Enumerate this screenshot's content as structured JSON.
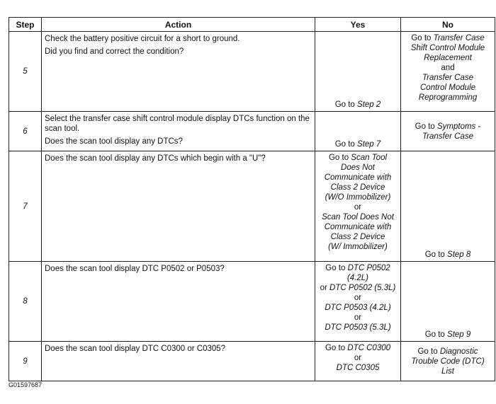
{
  "headers": {
    "step": "Step",
    "action": "Action",
    "yes": "Yes",
    "no": "No"
  },
  "rows": [
    {
      "step": "5",
      "action": [
        "Check the battery positive circuit for a short to ground.",
        "Did you find and correct the condition?"
      ],
      "yes": [
        [
          {
            "t": "Go to "
          },
          {
            "t": "Step 2",
            "i": true
          }
        ]
      ],
      "no": [
        [
          {
            "t": "Go to "
          },
          {
            "t": "Transfer Case",
            "i": true
          }
        ],
        [
          {
            "t": "Shift Control Module",
            "i": true
          }
        ],
        [
          {
            "t": "Replacement",
            "i": true
          }
        ],
        [
          {
            "t": "and"
          }
        ],
        [
          {
            "t": "Transfer Case",
            "i": true
          }
        ],
        [
          {
            "t": "Control Module",
            "i": true
          }
        ],
        [
          {
            "t": "Reprogramming",
            "i": true
          }
        ]
      ]
    },
    {
      "step": "6",
      "action": [
        "Select the transfer case shift control module display DTCs function on the scan tool.",
        "Does the scan tool display any DTCs?"
      ],
      "yes": [
        [
          {
            "t": "Go to "
          },
          {
            "t": "Step 7",
            "i": true
          }
        ]
      ],
      "no": [
        [
          {
            "t": "Go to "
          },
          {
            "t": "Symptoms -",
            "i": true
          }
        ],
        [
          {
            "t": "Transfer Case",
            "i": true
          }
        ]
      ]
    },
    {
      "step": "7",
      "action": [
        "Does the scan tool display any DTCs which begin with a \"U\"?"
      ],
      "yes": [
        [
          {
            "t": "Go to "
          },
          {
            "t": "Scan Tool",
            "i": true
          }
        ],
        [
          {
            "t": "Does Not",
            "i": true
          }
        ],
        [
          {
            "t": "Communicate with",
            "i": true
          }
        ],
        [
          {
            "t": "Class 2 Device",
            "i": true
          }
        ],
        [
          {
            "t": "(W/O Immobilizer)",
            "i": true
          }
        ],
        [
          {
            "t": "or"
          }
        ],
        [
          {
            "t": "Scan Tool Does Not",
            "i": true
          }
        ],
        [
          {
            "t": "Communicate with",
            "i": true
          }
        ],
        [
          {
            "t": "Class 2 Device",
            "i": true
          }
        ],
        [
          {
            "t": "(W/ Immobilizer)",
            "i": true
          }
        ]
      ],
      "no": [
        [
          {
            "t": "Go to "
          },
          {
            "t": "Step 8",
            "i": true
          }
        ]
      ]
    },
    {
      "step": "8",
      "action": [
        "Does the scan tool display DTC P0502 or P0503?"
      ],
      "yes": [
        [
          {
            "t": "Go to "
          },
          {
            "t": "DTC P0502",
            "i": true
          }
        ],
        [
          {
            "t": "(4.2L)",
            "i": true
          }
        ],
        [
          {
            "t": "or "
          },
          {
            "t": "DTC P0502 (5.3L)",
            "i": true
          }
        ],
        [
          {
            "t": "or"
          }
        ],
        [
          {
            "t": "DTC P0503 (4.2L)",
            "i": true
          }
        ],
        [
          {
            "t": "or"
          }
        ],
        [
          {
            "t": "DTC P0503 (5.3L)",
            "i": true
          }
        ]
      ],
      "no": [
        [
          {
            "t": "Go to "
          },
          {
            "t": "Step 9",
            "i": true
          }
        ]
      ]
    },
    {
      "step": "9",
      "action": [
        "Does the scan tool display DTC C0300 or C0305?"
      ],
      "yes": [
        [
          {
            "t": "Go to "
          },
          {
            "t": "DTC C0300",
            "i": true
          }
        ],
        [
          {
            "t": "or"
          }
        ],
        [
          {
            "t": "DTC C0305",
            "i": true
          }
        ]
      ],
      "no": [
        [
          {
            "t": "Go to "
          },
          {
            "t": "Diagnostic",
            "i": true
          }
        ],
        [
          {
            "t": "Trouble Code (DTC)",
            "i": true
          }
        ],
        [
          {
            "t": "List",
            "i": true
          }
        ]
      ]
    }
  ],
  "figure_id": "G01597687"
}
